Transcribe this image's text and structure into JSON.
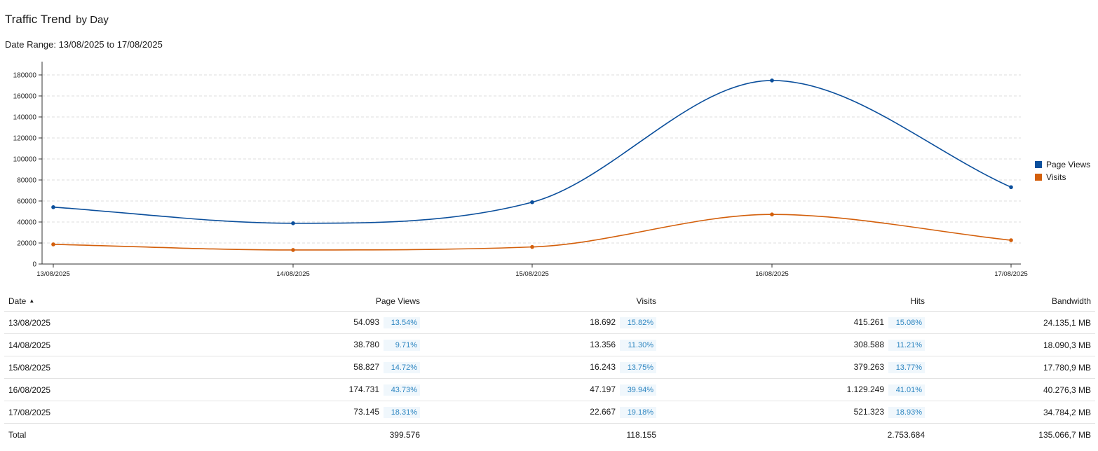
{
  "header": {
    "title": "Traffic Trend",
    "title_suffix": "by Day",
    "date_range": "Date Range: 13/08/2025 to 17/08/2025"
  },
  "chart_data": {
    "type": "line",
    "x": [
      "13/08/2025",
      "14/08/2025",
      "15/08/2025",
      "16/08/2025",
      "17/08/2025"
    ],
    "series": [
      {
        "name": "Page Views",
        "color": "#0b4f9c",
        "values": [
          54093,
          38780,
          58827,
          174731,
          73145
        ]
      },
      {
        "name": "Visits",
        "color": "#d35f0b",
        "values": [
          18692,
          13356,
          16243,
          47197,
          22667
        ]
      }
    ],
    "yticks": [
      "0",
      "20000",
      "40000",
      "60000",
      "80000",
      "100000",
      "120000",
      "140000",
      "160000",
      "180000"
    ],
    "ylim": [
      0,
      190000
    ],
    "grid": true,
    "legend": "right"
  },
  "legend": {
    "items": [
      {
        "label": "Page Views",
        "color": "#0b4f9c"
      },
      {
        "label": "Visits",
        "color": "#d35f0b"
      }
    ]
  },
  "table": {
    "columns": {
      "date": "Date",
      "page_views": "Page Views",
      "visits": "Visits",
      "hits": "Hits",
      "bandwidth": "Bandwidth"
    },
    "sort_icon": "sort-ascending-icon",
    "rows": [
      {
        "date": "13/08/2025",
        "page_views": "54.093",
        "page_views_pct": "13.54%",
        "visits": "18.692",
        "visits_pct": "15.82%",
        "hits": "415.261",
        "hits_pct": "15.08%",
        "bandwidth": "24.135,1 MB"
      },
      {
        "date": "14/08/2025",
        "page_views": "38.780",
        "page_views_pct": "9.71%",
        "visits": "13.356",
        "visits_pct": "11.30%",
        "hits": "308.588",
        "hits_pct": "11.21%",
        "bandwidth": "18.090,3 MB"
      },
      {
        "date": "15/08/2025",
        "page_views": "58.827",
        "page_views_pct": "14.72%",
        "visits": "16.243",
        "visits_pct": "13.75%",
        "hits": "379.263",
        "hits_pct": "13.77%",
        "bandwidth": "17.780,9 MB"
      },
      {
        "date": "16/08/2025",
        "page_views": "174.731",
        "page_views_pct": "43.73%",
        "visits": "47.197",
        "visits_pct": "39.94%",
        "hits": "1.129.249",
        "hits_pct": "41.01%",
        "bandwidth": "40.276,3 MB"
      },
      {
        "date": "17/08/2025",
        "page_views": "73.145",
        "page_views_pct": "18.31%",
        "visits": "22.667",
        "visits_pct": "19.18%",
        "hits": "521.323",
        "hits_pct": "18.93%",
        "bandwidth": "34.784,2 MB"
      }
    ],
    "total": {
      "label": "Total",
      "page_views": "399.576",
      "visits": "118.155",
      "hits": "2.753.684",
      "bandwidth": "135.066,7 MB"
    }
  }
}
